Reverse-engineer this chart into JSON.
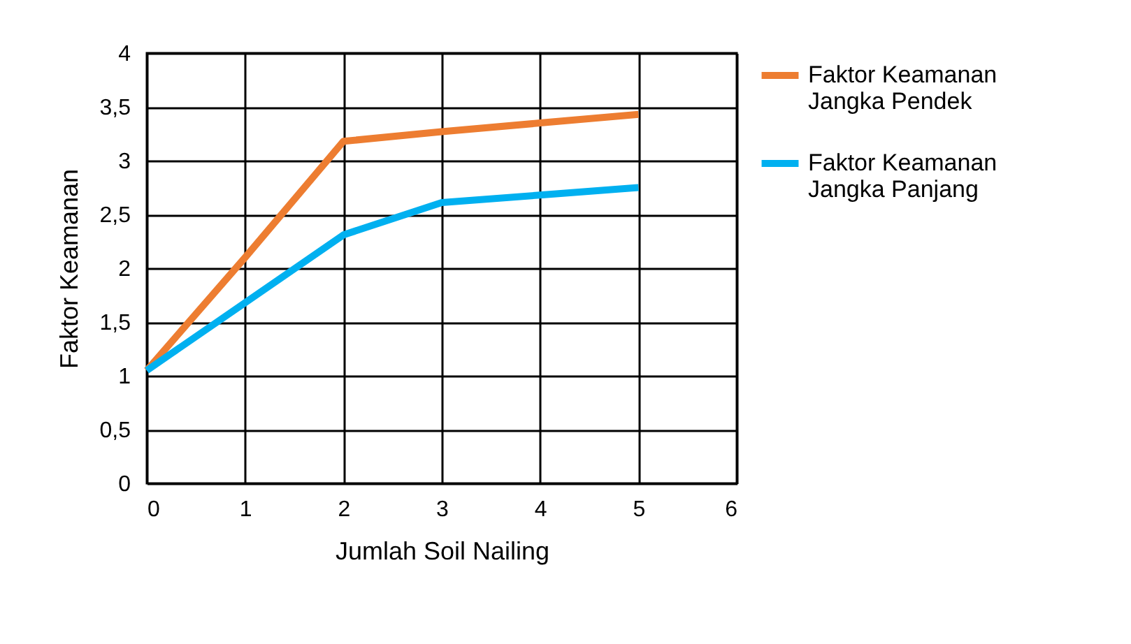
{
  "chart_data": {
    "type": "line",
    "xlabel": "Jumlah Soil Nailing",
    "ylabel": "Faktor Keamanan",
    "x": [
      0,
      1,
      2,
      3,
      4,
      5
    ],
    "series": [
      {
        "name": "Faktor Keamanan Jangka Pendek",
        "color": "#ed7d31",
        "values": [
          1.05,
          2.1,
          3.18,
          3.27,
          3.35,
          3.43
        ]
      },
      {
        "name": "Faktor Keamanan Jangka Panjang",
        "color": "#00b0f0",
        "values": [
          1.05,
          1.68,
          2.31,
          2.61,
          2.68,
          2.75
        ]
      }
    ],
    "xlim": [
      0,
      6
    ],
    "xticks": [
      0,
      1,
      2,
      3,
      4,
      5,
      6
    ],
    "ylim": [
      0,
      4
    ],
    "yticks": [
      0,
      {
        "value": 0.5,
        "label": "0,5"
      },
      1,
      {
        "value": 1.5,
        "label": "1,5"
      },
      2,
      {
        "value": 2.5,
        "label": "2,5"
      },
      3,
      {
        "value": 3.5,
        "label": "3,5"
      },
      4
    ],
    "grid": true,
    "legend": "right",
    "marker": "none",
    "line_style": "solid"
  }
}
